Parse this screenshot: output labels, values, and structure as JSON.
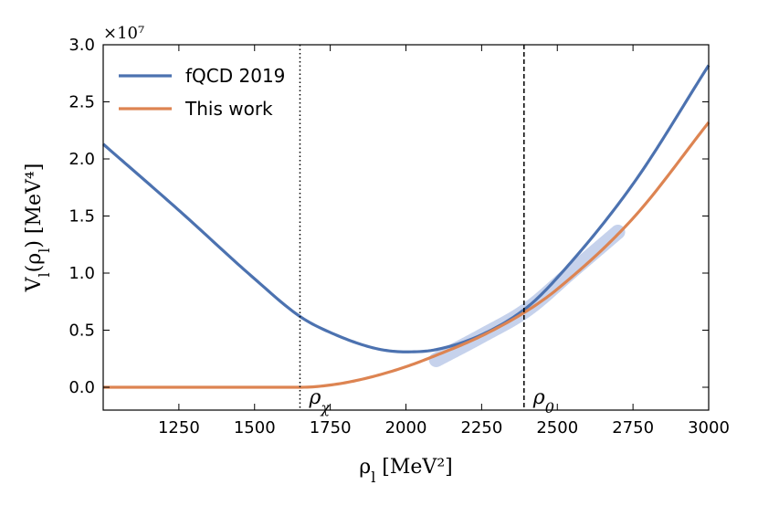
{
  "chart_data": {
    "type": "line",
    "x_axis_label": "ρ_l [MeV²]",
    "y_axis_label": "V_l(ρ_l) [MeV⁴]",
    "y_scale_label": "×10⁷",
    "xlim": [
      1000,
      3000
    ],
    "ylim": [
      -0.2,
      3.0
    ],
    "xticks": [
      1250,
      1500,
      1750,
      2000,
      2250,
      2500,
      2750,
      3000
    ],
    "yticks": [
      0.0,
      0.5,
      1.0,
      1.5,
      2.0,
      2.5,
      3.0
    ],
    "xtick_labels": [
      "1250",
      "1500",
      "1750",
      "2000",
      "2250",
      "2500",
      "2750",
      "3000"
    ],
    "ytick_labels": [
      "0.0",
      "0.5",
      "1.0",
      "1.5",
      "2.0",
      "2.5",
      "3.0"
    ],
    "legend_position": "top-left",
    "series": [
      {
        "name": "fQCD 2019",
        "color": "#4c72b0",
        "x": [
          1000,
          1250,
          1500,
          1650,
          1750,
          1900,
          2000,
          2100,
          2250,
          2400,
          2500,
          2750,
          3000
        ],
        "y": [
          2.13,
          1.55,
          0.95,
          0.62,
          0.48,
          0.34,
          0.31,
          0.33,
          0.46,
          0.7,
          0.96,
          1.78,
          2.82
        ]
      },
      {
        "name": "This work",
        "color": "#dd8452",
        "x": [
          1000,
          1250,
          1500,
          1650,
          1700,
          1800,
          1900,
          2000,
          2100,
          2250,
          2400,
          2500,
          2750,
          3000
        ],
        "y": [
          0.0,
          0.0,
          0.0,
          0.0,
          0.005,
          0.04,
          0.1,
          0.18,
          0.28,
          0.45,
          0.67,
          0.86,
          1.48,
          2.32
        ]
      }
    ],
    "uncertainty_band": {
      "color": "#b3c3e6",
      "x": [
        2100,
        2250,
        2400,
        2550,
        2700
      ],
      "y": [
        0.24,
        0.45,
        0.68,
        1.02,
        1.36
      ]
    },
    "vlines": [
      {
        "x": 1650,
        "label": "ρ_χ",
        "style": "dotted"
      },
      {
        "x": 2390,
        "label": "ρ_0",
        "style": "dashed"
      }
    ]
  }
}
